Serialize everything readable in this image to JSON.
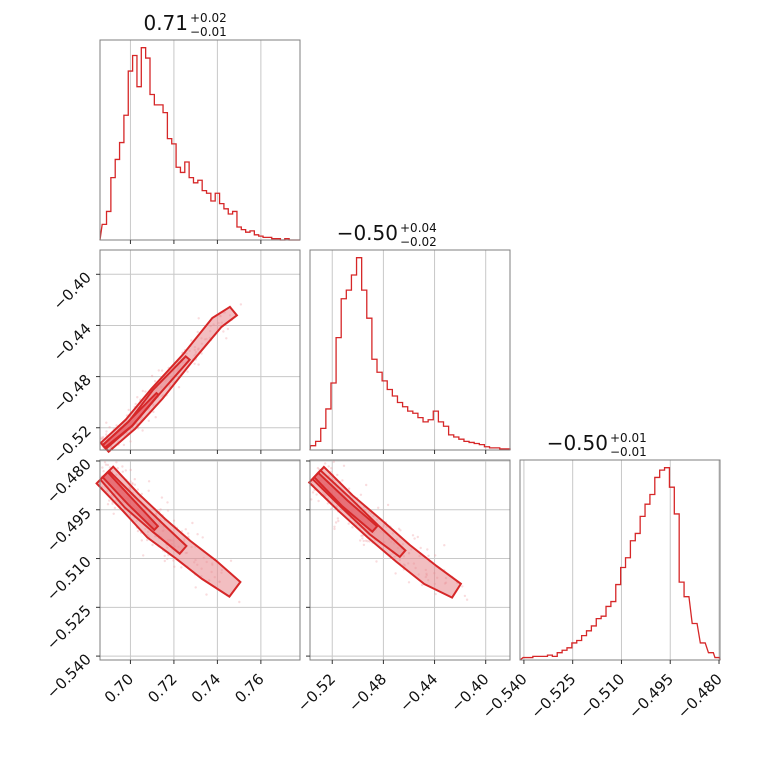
{
  "chart_data": [
    {
      "type": "histogram",
      "panel": "diag-0",
      "title": {
        "value": "0.71",
        "upper": "+0.02",
        "lower": "−0.01"
      },
      "xlim": [
        0.686,
        0.778
      ],
      "x": [
        0.688,
        0.69,
        0.692,
        0.694,
        0.696,
        0.698,
        0.7,
        0.702,
        0.704,
        0.706,
        0.708,
        0.71,
        0.712,
        0.714,
        0.716,
        0.718,
        0.72,
        0.722,
        0.724,
        0.726,
        0.728,
        0.73,
        0.732,
        0.734,
        0.736,
        0.738,
        0.74,
        0.742,
        0.744,
        0.746,
        0.748,
        0.75,
        0.752,
        0.754,
        0.756,
        0.758,
        0.76,
        0.762,
        0.764,
        0.766,
        0.768,
        0.77,
        0.772,
        0.774,
        0.776
      ],
      "values": [
        12,
        22,
        48,
        62,
        75,
        96,
        130,
        142,
        118,
        148,
        140,
        112,
        104,
        104,
        98,
        78,
        74,
        56,
        52,
        60,
        48,
        44,
        46,
        38,
        36,
        30,
        36,
        28,
        24,
        20,
        22,
        10,
        8,
        6,
        7,
        4,
        3,
        2,
        2,
        1,
        1,
        0,
        1,
        0,
        0
      ]
    },
    {
      "type": "scatter-contour",
      "panel": "offdiag-1-0",
      "xlim": [
        0.686,
        0.778
      ],
      "ylim": [
        -0.5374,
        -0.381
      ],
      "yticks": [
        "−0.52",
        "−0.48",
        "−0.44",
        "−0.40"
      ],
      "ytick_values": [
        -0.52,
        -0.48,
        -0.44,
        -0.4
      ],
      "trend": [
        [
          0.688,
          -0.535
        ],
        [
          0.7,
          -0.517
        ],
        [
          0.712,
          -0.493
        ],
        [
          0.726,
          -0.465
        ],
        [
          0.74,
          -0.438
        ],
        [
          0.747,
          -0.428
        ]
      ]
    },
    {
      "type": "histogram",
      "panel": "diag-1",
      "title": {
        "value": "−0.50",
        "upper": "+0.04",
        "lower": "−0.02"
      },
      "xlim": [
        -0.5374,
        -0.381
      ],
      "x": [
        -0.535,
        -0.531,
        -0.527,
        -0.523,
        -0.519,
        -0.515,
        -0.511,
        -0.507,
        -0.503,
        -0.499,
        -0.495,
        -0.491,
        -0.487,
        -0.483,
        -0.479,
        -0.475,
        -0.471,
        -0.467,
        -0.463,
        -0.459,
        -0.455,
        -0.451,
        -0.447,
        -0.443,
        -0.439,
        -0.435,
        -0.431,
        -0.427,
        -0.423,
        -0.419,
        -0.415,
        -0.411,
        -0.407,
        -0.403,
        -0.399,
        -0.395,
        -0.391,
        -0.387,
        -0.383
      ],
      "values": [
        4,
        8,
        20,
        38,
        62,
        104,
        140,
        148,
        162,
        178,
        148,
        122,
        84,
        72,
        64,
        56,
        50,
        44,
        40,
        36,
        34,
        30,
        26,
        28,
        36,
        26,
        22,
        14,
        12,
        10,
        8,
        7,
        6,
        5,
        3,
        2,
        2,
        1,
        1
      ]
    },
    {
      "type": "scatter-contour",
      "panel": "offdiag-2-0",
      "xlim": [
        0.686,
        0.778
      ],
      "ylim": [
        -0.5412,
        -0.4797
      ],
      "yticks": [
        "−0.540",
        "−0.525",
        "−0.510",
        "−0.495",
        "−0.480"
      ],
      "ytick_values": [
        -0.54,
        -0.525,
        -0.51,
        -0.495,
        -0.48
      ],
      "trend": [
        [
          0.688,
          -0.4845
        ],
        [
          0.7,
          -0.4925
        ],
        [
          0.712,
          -0.5005
        ],
        [
          0.724,
          -0.5075
        ],
        [
          0.736,
          -0.5135
        ],
        [
          0.748,
          -0.5195
        ]
      ]
    },
    {
      "type": "scatter-contour",
      "panel": "offdiag-2-1",
      "xlim": [
        -0.5374,
        -0.381
      ],
      "ylim": [
        -0.5412,
        -0.4797
      ],
      "trend": [
        [
          -0.533,
          -0.4845
        ],
        [
          -0.51,
          -0.493
        ],
        [
          -0.487,
          -0.501
        ],
        [
          -0.465,
          -0.5085
        ],
        [
          -0.443,
          -0.515
        ],
        [
          -0.423,
          -0.52
        ]
      ]
    },
    {
      "type": "histogram",
      "panel": "diag-2",
      "title": {
        "value": "−0.50",
        "upper": "+0.01",
        "lower": "−0.01"
      },
      "xlim": [
        -0.5412,
        -0.4797
      ],
      "x": [
        -0.5395,
        -0.538,
        -0.5365,
        -0.535,
        -0.5335,
        -0.532,
        -0.5305,
        -0.529,
        -0.5275,
        -0.526,
        -0.5245,
        -0.523,
        -0.5215,
        -0.52,
        -0.5185,
        -0.517,
        -0.5155,
        -0.514,
        -0.5125,
        -0.511,
        -0.5095,
        -0.508,
        -0.5065,
        -0.505,
        -0.5035,
        -0.502,
        -0.5005,
        -0.499,
        -0.4975,
        -0.496,
        -0.4945,
        -0.493,
        -0.4915,
        -0.49,
        -0.4875,
        -0.485,
        -0.4825,
        -0.4805
      ],
      "values": [
        2,
        2,
        3,
        3,
        3,
        4,
        3,
        6,
        8,
        10,
        14,
        16,
        20,
        24,
        28,
        34,
        36,
        44,
        48,
        62,
        76,
        84,
        98,
        104,
        118,
        128,
        136,
        150,
        156,
        158,
        142,
        120,
        64,
        52,
        30,
        14,
        6,
        2
      ]
    }
  ],
  "axes": {
    "bottom_0_ticks": [
      "0.70",
      "0.72",
      "0.74",
      "0.76"
    ],
    "bottom_0_values": [
      0.7,
      0.72,
      0.74,
      0.76
    ],
    "bottom_1_ticks": [
      "−0.52",
      "−0.48",
      "−0.44",
      "−0.40"
    ],
    "bottom_1_values": [
      -0.52,
      -0.48,
      -0.44,
      -0.4
    ],
    "bottom_2_ticks": [
      "−0.540",
      "−0.525",
      "−0.510",
      "−0.495",
      "−0.480"
    ],
    "bottom_2_values": [
      -0.54,
      -0.525,
      -0.51,
      -0.495,
      -0.48
    ]
  },
  "colors": {
    "line": "#d62728",
    "fill_light": "#e8888e",
    "fill_dark": "#e4525a",
    "grid": "#c8c8c8",
    "frame": "#7f7f7f"
  }
}
